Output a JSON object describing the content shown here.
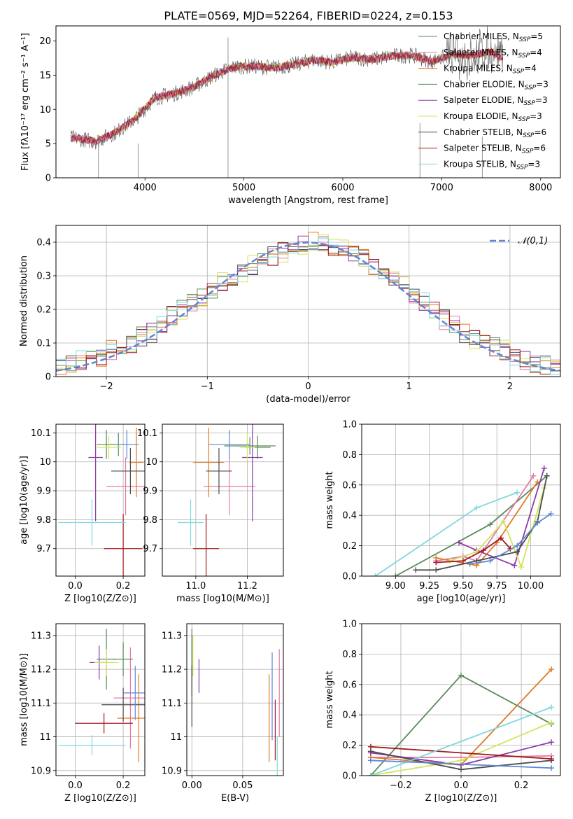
{
  "figure": {
    "title": "PLATE=0569, MJD=52264, FIBERID=0224, z=0.153"
  },
  "models": [
    {
      "name": "Chabrier MILES",
      "nssp": "5",
      "color": "#5b8a5a"
    },
    {
      "name": "Salpeter MILES",
      "nssp": "4",
      "color": "#e47aa5"
    },
    {
      "name": "Kroupa MILES",
      "nssp": "4",
      "color": "#e07b24"
    },
    {
      "name": "Chabrier ELODIE",
      "nssp": "3",
      "color": "#5b8a5a"
    },
    {
      "name": "Salpeter ELODIE",
      "nssp": "3",
      "color": "#8e3aa8"
    },
    {
      "name": "Kroupa ELODIE",
      "nssp": "3",
      "color": "#d4e35a"
    },
    {
      "name": "Chabrier STELIB",
      "nssp": "6",
      "color": "#4d4d4d"
    },
    {
      "name": "Salpeter STELIB",
      "nssp": "6",
      "color": "#a0191c"
    },
    {
      "name": "Kroupa STELIB",
      "nssp": "3",
      "color": "#7fd8df"
    }
  ],
  "chart_data": [
    {
      "id": "spectrum",
      "type": "line",
      "xlabel": "wavelength [Angstrom, rest frame]",
      "ylabel": "Flux [fλ10⁻¹⁷ erg cm⁻² s⁻¹ A⁻¹]",
      "xlim": [
        3100,
        8200
      ],
      "ylim": [
        0,
        22.2
      ],
      "xticks": [
        4000,
        5000,
        6000,
        7000,
        8000
      ],
      "yticks": [
        0,
        5,
        10,
        15,
        20
      ],
      "grid": false,
      "legend": "top-right",
      "x": [
        3300,
        3500,
        3700,
        3900,
        4100,
        4300,
        4500,
        4700,
        4900,
        5100,
        5300,
        5500,
        5700,
        5900,
        6100,
        6300,
        6500,
        6700,
        6900,
        7100,
        7300,
        7500,
        7600
      ],
      "y": [
        5.8,
        5.3,
        6.6,
        8.6,
        11.7,
        12.3,
        13.3,
        15.0,
        16.2,
        16.3,
        16.1,
        16.5,
        17.2,
        16.9,
        17.6,
        17.3,
        17.8,
        17.9,
        17.0,
        18.0,
        17.9,
        18.4,
        17.5
      ],
      "note_lines": [
        {
          "x": 4840,
          "from": 0,
          "to": 20.5
        },
        {
          "x": 3530,
          "from": 0,
          "to": 5
        },
        {
          "x": 3930,
          "from": 0,
          "to": 5
        },
        {
          "x": 6780,
          "from": 0,
          "to": 8
        },
        {
          "x": 7410,
          "from": 0,
          "to": 6
        }
      ]
    },
    {
      "id": "residuals",
      "type": "histogram",
      "xlabel": "(data-model)/error",
      "ylabel": "Normed distribution",
      "xlim": [
        -2.5,
        2.5
      ],
      "ylim": [
        0,
        0.45
      ],
      "xticks": [
        -2,
        -1,
        0,
        1,
        2
      ],
      "xtick_labels": [
        "−2",
        "−1",
        "0",
        "1",
        "2"
      ],
      "yticks": [
        0,
        0.1,
        0.2,
        0.3,
        0.4
      ],
      "grid": true,
      "legend": "top-right",
      "normal_label": "𝒩(0,1)",
      "bin_width": 0.1,
      "base_counts": [
        0.03,
        0.04,
        0.05,
        0.06,
        0.06,
        0.08,
        0.09,
        0.1,
        0.12,
        0.13,
        0.15,
        0.18,
        0.2,
        0.22,
        0.24,
        0.26,
        0.28,
        0.29,
        0.31,
        0.33,
        0.34,
        0.36,
        0.37,
        0.38,
        0.39,
        0.4,
        0.4,
        0.39,
        0.38,
        0.37,
        0.35,
        0.33,
        0.31,
        0.29,
        0.27,
        0.24,
        0.22,
        0.2,
        0.17,
        0.15,
        0.13,
        0.11,
        0.1,
        0.09,
        0.08,
        0.06,
        0.05,
        0.04,
        0.035,
        0.03
      ]
    },
    {
      "id": "age-vs-Z",
      "type": "scatter",
      "xlabel": "Z [log10(Z/Z⊙)]",
      "ylabel": "age  [log10(age/yr)]",
      "xlim": [
        -0.08,
        0.29
      ],
      "ylim": [
        9.605,
        10.13
      ],
      "xticks": [
        0.0,
        0.2
      ],
      "xtick_labels": [
        "0.0",
        "0.2"
      ],
      "yticks": [
        9.7,
        9.8,
        9.9,
        10.0,
        10.1
      ],
      "grid": true,
      "points": [
        {
          "x": 0.13,
          "y": 10.06,
          "xe": 0.04,
          "ye": 0.05,
          "m": 0
        },
        {
          "x": 0.21,
          "y": 9.915,
          "xe": 0.08,
          "ye": 0.1,
          "m": 1
        },
        {
          "x": 0.255,
          "y": 9.998,
          "xe": 0.03,
          "ye": 0.12,
          "m": 2
        },
        {
          "x": 0.18,
          "y": 10.06,
          "xe": 0.05,
          "ye": 0.04,
          "m": 3
        },
        {
          "x": 0.085,
          "y": 10.015,
          "xe": 0.03,
          "ye": 0.22,
          "m": 4
        },
        {
          "x": 0.14,
          "y": 10.05,
          "xe": 0.05,
          "ye": 0.04,
          "m": 5
        },
        {
          "x": 0.23,
          "y": 9.968,
          "xe": 0.08,
          "ye": 0.08,
          "m": 6
        },
        {
          "x": 0.2,
          "y": 9.7,
          "xe": 0.08,
          "ye": 0.12,
          "m": 7
        },
        {
          "x": 0.07,
          "y": 9.79,
          "xe": 0.14,
          "ye": 0.08,
          "m": 8
        },
        {
          "x": 0.215,
          "y": 10.06,
          "xe": 0.05,
          "ye": 0.05,
          "m": "blue"
        }
      ]
    },
    {
      "id": "age-vs-mass",
      "type": "scatter",
      "xlabel": "mass [log10(M/M⊙)]",
      "ylabel": "",
      "xlim": [
        10.87,
        11.34
      ],
      "ylim": [
        9.605,
        10.13
      ],
      "xticks": [
        11.0,
        11.2
      ],
      "xtick_labels": [
        "11.0",
        "11.2"
      ],
      "yticks": [
        9.7,
        9.8,
        9.9,
        10.0,
        10.1
      ],
      "grid": true,
      "points": [
        {
          "x": 11.21,
          "y": 10.055,
          "xe": 0.1,
          "ye": 0.03,
          "m": 0
        },
        {
          "x": 11.13,
          "y": 9.915,
          "xe": 0.1,
          "ye": 0.1,
          "m": 1
        },
        {
          "x": 11.05,
          "y": 9.998,
          "xe": 0.06,
          "ye": 0.12,
          "m": 2
        },
        {
          "x": 11.24,
          "y": 10.05,
          "xe": 0.05,
          "ye": 0.04,
          "m": 3
        },
        {
          "x": 11.22,
          "y": 10.015,
          "xe": 0.04,
          "ye": 0.22,
          "m": 4
        },
        {
          "x": 11.2,
          "y": 10.05,
          "xe": 0.03,
          "ye": 0.05,
          "m": 5
        },
        {
          "x": 11.09,
          "y": 9.968,
          "xe": 0.05,
          "ye": 0.08,
          "m": 6
        },
        {
          "x": 11.04,
          "y": 9.7,
          "xe": 0.05,
          "ye": 0.12,
          "m": 7
        },
        {
          "x": 10.98,
          "y": 9.79,
          "xe": 0.05,
          "ye": 0.08,
          "m": 8
        },
        {
          "x": 11.13,
          "y": 10.06,
          "xe": 0.08,
          "ye": 0.05,
          "m": "blue"
        }
      ]
    },
    {
      "id": "massweight-vs-age",
      "type": "line",
      "xlabel": "age  [log10(age/yr)]",
      "ylabel": "mass weight",
      "xlim": [
        8.75,
        10.22
      ],
      "ylim": [
        0,
        1
      ],
      "xticks": [
        9.0,
        9.25,
        9.5,
        9.75,
        10.0
      ],
      "xtick_labels": [
        "9.00",
        "9.25",
        "9.50",
        "9.75",
        "10.00"
      ],
      "yticks": [
        0,
        0.2,
        0.4,
        0.6,
        0.8,
        1.0
      ],
      "ytick_labels": [
        "0.0",
        "0.2",
        "0.4",
        "0.6",
        "0.8",
        "1.0"
      ],
      "grid": true,
      "series": [
        {
          "m": 0,
          "x": [
            9.0,
            9.7,
            10.12
          ],
          "y": [
            0.0,
            0.34,
            0.66
          ]
        },
        {
          "m": 1,
          "x": [
            9.3,
            9.5,
            9.6,
            10.02
          ],
          "y": [
            0.1,
            0.13,
            0.1,
            0.66
          ]
        },
        {
          "m": 2,
          "x": [
            9.3,
            9.6,
            9.75,
            10.05
          ],
          "y": [
            0.12,
            0.07,
            0.22,
            0.62
          ]
        },
        {
          "m": 4,
          "x": [
            9.47,
            9.6,
            9.88,
            10.1
          ],
          "y": [
            0.22,
            0.17,
            0.07,
            0.71
          ]
        },
        {
          "m": 5,
          "x": [
            9.4,
            9.6,
            9.8,
            9.93,
            10.1
          ],
          "y": [
            0.1,
            0.16,
            0.36,
            0.06,
            0.58
          ]
        },
        {
          "m": 6,
          "x": [
            9.15,
            9.3,
            9.6,
            9.9,
            10.05,
            10.12
          ],
          "y": [
            0.04,
            0.04,
            0.1,
            0.16,
            0.36,
            0.66
          ]
        },
        {
          "m": 7,
          "x": [
            9.3,
            9.5,
            9.65,
            9.78,
            9.85
          ],
          "y": [
            0.09,
            0.1,
            0.17,
            0.25,
            0.18
          ]
        },
        {
          "m": 8,
          "x": [
            8.85,
            9.6,
            9.9
          ],
          "y": [
            0.0,
            0.45,
            0.55
          ]
        },
        {
          "m": "blue",
          "x": [
            9.55,
            9.7,
            9.9,
            10.05,
            10.15
          ],
          "y": [
            0.08,
            0.1,
            0.2,
            0.35,
            0.41
          ]
        }
      ]
    },
    {
      "id": "mass-vs-Z",
      "type": "scatter",
      "xlabel": "Z [log10(Z/Z⊙)]",
      "ylabel": "mass [log10(M/M⊙)]",
      "xlim": [
        -0.08,
        0.29
      ],
      "ylim": [
        10.885,
        11.335
      ],
      "xticks": [
        0.0,
        0.2
      ],
      "xtick_labels": [
        "0.0",
        "0.2"
      ],
      "yticks": [
        10.9,
        11.0,
        11.1,
        11.2,
        11.3
      ],
      "grid": true,
      "points": [
        {
          "x": 0.13,
          "y": 11.23,
          "xe": 0.04,
          "ye": 0.09,
          "m": 0
        },
        {
          "x": 0.23,
          "y": 11.115,
          "xe": 0.07,
          "ye": 0.15,
          "m": 1
        },
        {
          "x": 0.265,
          "y": 11.055,
          "xe": 0.09,
          "ye": 0.13,
          "m": 2
        },
        {
          "x": 0.2,
          "y": 11.23,
          "xe": 0.04,
          "ye": 0.05,
          "m": 3
        },
        {
          "x": 0.1,
          "y": 11.22,
          "xe": 0.04,
          "ye": 0.05,
          "m": 4
        },
        {
          "x": 0.13,
          "y": 11.22,
          "xe": 0.05,
          "ye": 0.04,
          "m": 5
        },
        {
          "x": 0.2,
          "y": 11.095,
          "xe": 0.09,
          "ye": 0.05,
          "m": 6
        },
        {
          "x": 0.12,
          "y": 11.04,
          "xe": 0.12,
          "ye": 0.03,
          "m": 7
        },
        {
          "x": 0.07,
          "y": 10.975,
          "xe": 0.14,
          "ye": 0.03,
          "m": 8
        },
        {
          "x": 0.25,
          "y": 11.13,
          "xe": 0.05,
          "ye": 0.08,
          "m": "blue"
        }
      ]
    },
    {
      "id": "mass-vs-ebv",
      "type": "scatter",
      "xlabel": "E(B-V)",
      "ylabel": "",
      "xlim": [
        -0.005,
        0.09
      ],
      "ylim": [
        10.885,
        11.335
      ],
      "xticks": [
        0.0,
        0.05
      ],
      "xtick_labels": [
        "0.00",
        "0.05"
      ],
      "yticks": [
        10.9,
        11.0,
        11.1,
        11.2,
        11.3
      ],
      "grid": true,
      "points": [
        {
          "x": 0.0,
          "y": 11.22,
          "xe": 0.0,
          "ye": 0.1,
          "m": 0
        },
        {
          "x": 0.086,
          "y": 11.13,
          "xe": 0.0,
          "ye": 0.13,
          "m": 1
        },
        {
          "x": 0.076,
          "y": 11.055,
          "xe": 0.0,
          "ye": 0.13,
          "m": 2
        },
        {
          "x": 0.0,
          "y": 11.22,
          "xe": 0.0,
          "ye": 0.08,
          "m": 3
        },
        {
          "x": 0.007,
          "y": 11.18,
          "xe": 0.0,
          "ye": 0.05,
          "m": 4
        },
        {
          "x": 0.001,
          "y": 11.24,
          "xe": 0.0,
          "ye": 0.06,
          "m": 5
        },
        {
          "x": 0.0,
          "y": 11.12,
          "xe": 0.0,
          "ye": 0.09,
          "m": 6
        },
        {
          "x": 0.082,
          "y": 11.02,
          "xe": 0.0,
          "ye": 0.09,
          "m": 7
        },
        {
          "x": 0.084,
          "y": 10.94,
          "xe": 0.0,
          "ye": 0.06,
          "m": 8
        },
        {
          "x": 0.079,
          "y": 11.12,
          "xe": 0.0,
          "ye": 0.13,
          "m": "blue"
        }
      ]
    },
    {
      "id": "massweight-vs-Z",
      "type": "line",
      "xlabel": "Z [log10(Z/Z⊙)]",
      "ylabel": "mass weight",
      "xlim": [
        -0.33,
        0.33
      ],
      "ylim": [
        0,
        1
      ],
      "xticks": [
        -0.2,
        0.0,
        0.2
      ],
      "xtick_labels": [
        "−0.2",
        "0.0",
        "0.2"
      ],
      "yticks": [
        0,
        0.2,
        0.4,
        0.6,
        0.8,
        1.0
      ],
      "ytick_labels": [
        "0.0",
        "0.2",
        "0.4",
        "0.6",
        "0.8",
        "1.0"
      ],
      "grid": true,
      "series": [
        {
          "m": 0,
          "x": [
            -0.3,
            0.0,
            0.3
          ],
          "y": [
            0.0,
            0.66,
            0.34
          ]
        },
        {
          "m": 1,
          "x": [
            -0.3,
            0.0,
            0.3
          ],
          "y": [
            0.12,
            0.12,
            0.13
          ]
        },
        {
          "m": 2,
          "x": [
            -0.3,
            0.0,
            0.3
          ],
          "y": [
            0.12,
            0.07,
            0.7
          ]
        },
        {
          "m": 4,
          "x": [
            -0.3,
            0.0,
            0.3
          ],
          "y": [
            0.15,
            0.07,
            0.22
          ]
        },
        {
          "m": 5,
          "x": [
            -0.3,
            0.0,
            0.3
          ],
          "y": [
            0.0,
            0.1,
            0.35
          ]
        },
        {
          "m": 6,
          "x": [
            -0.3,
            0.0,
            0.3
          ],
          "y": [
            0.16,
            0.04,
            0.1
          ]
        },
        {
          "m": 7,
          "x": [
            -0.3,
            0.3
          ],
          "y": [
            0.19,
            0.11
          ]
        },
        {
          "m": 8,
          "x": [
            -0.3,
            0.3
          ],
          "y": [
            0.0,
            0.45
          ]
        },
        {
          "m": "blue",
          "x": [
            -0.3,
            0.3
          ],
          "y": [
            0.1,
            0.05
          ]
        }
      ]
    }
  ],
  "colors": {
    "blue": "#5e86d6",
    "normal_curve": "#5e86d6",
    "grid": "#b0b0b0"
  }
}
